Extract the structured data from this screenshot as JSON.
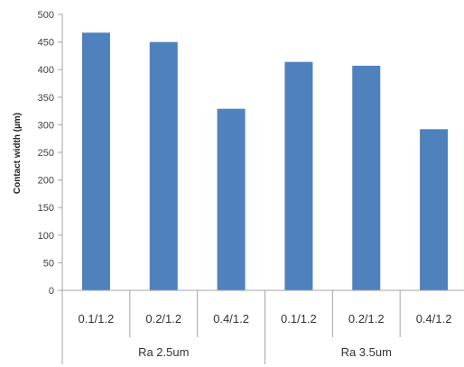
{
  "chart_data": {
    "type": "bar",
    "ylabel": "Contact width (µm)",
    "xlabel": "",
    "ylim": [
      0,
      500
    ],
    "yticks": [
      0,
      50,
      100,
      150,
      200,
      250,
      300,
      350,
      400,
      450,
      500
    ],
    "grid": false,
    "colors": {
      "bar": "#4f81bd",
      "axis": "#a6a6a6"
    },
    "groups": [
      {
        "label": "Ra 2.5um",
        "categories": [
          "0.1/1.2",
          "0.2/1.2",
          "0.4/1.2"
        ],
        "values": [
          467,
          450,
          329
        ]
      },
      {
        "label": "Ra 3.5um",
        "categories": [
          "0.1/1.2",
          "0.2/1.2",
          "0.4/1.2"
        ],
        "values": [
          414,
          407,
          292
        ]
      }
    ]
  }
}
